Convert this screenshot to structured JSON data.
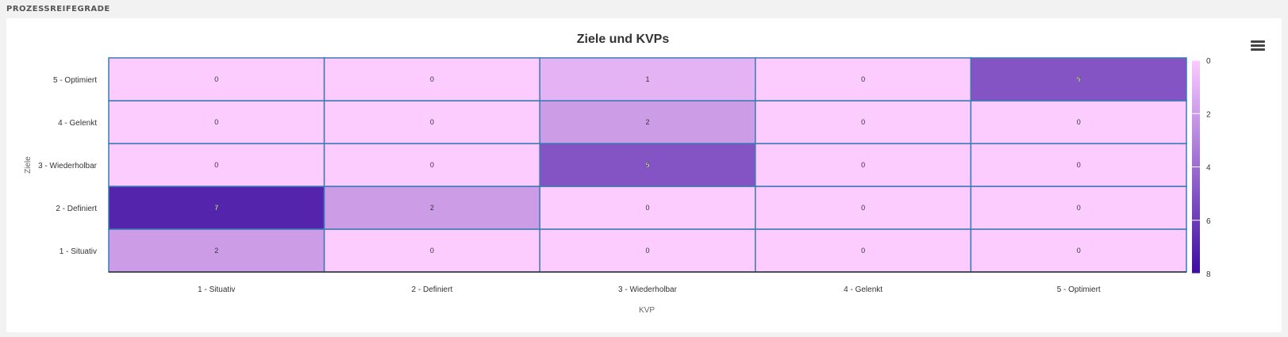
{
  "section": {
    "label": "PROZESSREIFEGRADE"
  },
  "toolbar": {
    "menu_icon": "hamburger-menu-icon"
  },
  "chart_data": {
    "type": "heatmap",
    "title": "Ziele und KVPs",
    "xlabel": "KVP",
    "ylabel": "Ziele",
    "x_categories": [
      "1 - Situativ",
      "2 - Definiert",
      "3 - Wiederholbar",
      "4 - Gelenkt",
      "5 - Optimiert"
    ],
    "y_categories": [
      "1 - Situativ",
      "2 - Definiert",
      "3 - Wiederholbar",
      "4 - Gelenkt",
      "5 - Optimiert"
    ],
    "values": [
      [
        2,
        0,
        0,
        0,
        0
      ],
      [
        7,
        2,
        0,
        0,
        0
      ],
      [
        0,
        0,
        5,
        0,
        0
      ],
      [
        0,
        0,
        2,
        0,
        0
      ],
      [
        0,
        0,
        1,
        0,
        5
      ]
    ],
    "color_axis": {
      "min": 0,
      "max": 8,
      "min_color": "#fccbff",
      "max_color": "#3c0da0",
      "ticks": [
        0,
        2,
        4,
        6,
        8
      ]
    },
    "legend": "right"
  }
}
